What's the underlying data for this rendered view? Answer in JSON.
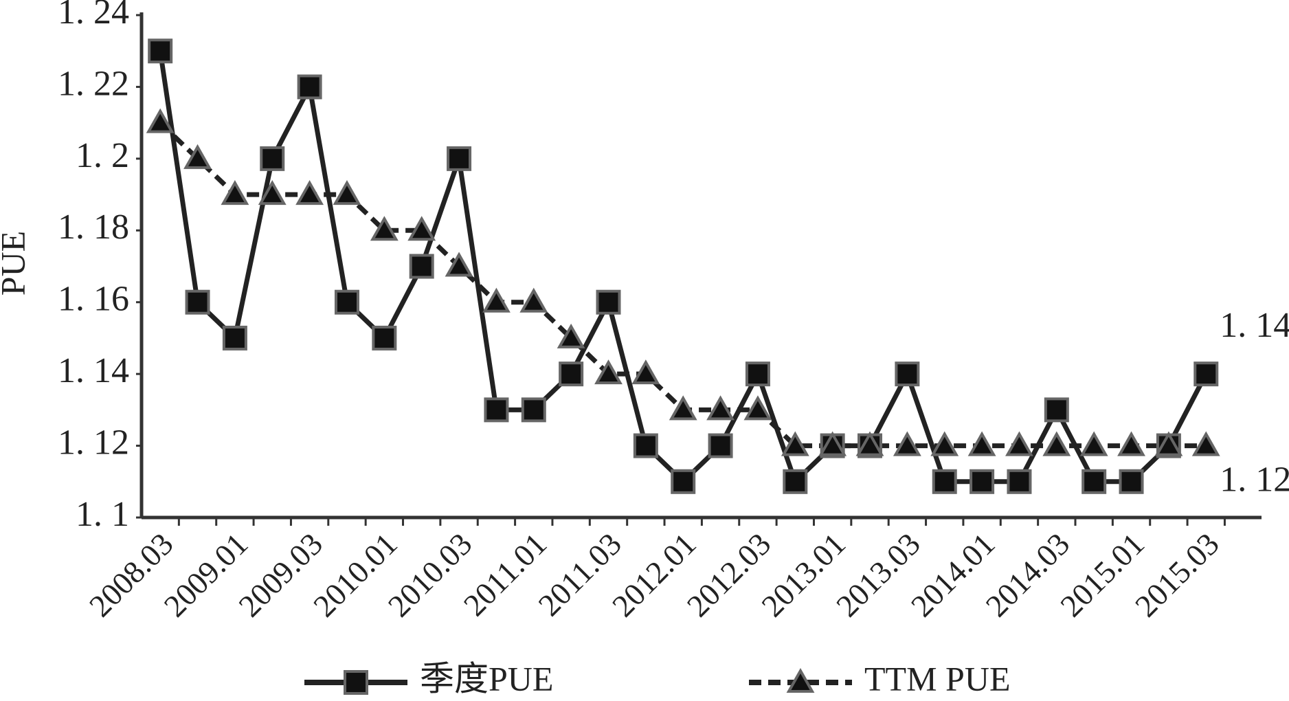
{
  "chart_data": {
    "type": "line",
    "ylabel": "PUE",
    "categories": [
      "2008.03",
      null,
      "2009.01",
      null,
      "2009.03",
      null,
      "2010.01",
      null,
      "2010.03",
      null,
      "2011.01",
      null,
      "2011.03",
      null,
      "2012.01",
      null,
      "2012.03",
      null,
      "2013.01",
      null,
      "2013.03",
      null,
      "2014.01",
      null,
      "2014.03",
      null,
      "2015.01",
      null,
      "2015.03"
    ],
    "series": [
      {
        "name": "季度PUE",
        "color": "#222222",
        "marker": "square",
        "dashed": false,
        "values": [
          1.23,
          1.16,
          1.15,
          1.2,
          1.22,
          1.16,
          1.15,
          1.17,
          1.2,
          1.13,
          1.13,
          1.14,
          1.16,
          1.12,
          1.11,
          1.12,
          1.14,
          1.11,
          1.12,
          1.12,
          1.14,
          1.11,
          1.11,
          1.11,
          1.13,
          1.11,
          1.11,
          1.12,
          1.14
        ]
      },
      {
        "name": "TTM PUE",
        "color": "#222222",
        "marker": "triangle",
        "dashed": true,
        "values": [
          1.21,
          1.2,
          1.19,
          1.19,
          1.19,
          1.19,
          1.18,
          1.18,
          1.17,
          1.16,
          1.16,
          1.15,
          1.14,
          1.14,
          1.13,
          1.13,
          1.13,
          1.12,
          1.12,
          1.12,
          1.12,
          1.12,
          1.12,
          1.12,
          1.12,
          1.12,
          1.12,
          1.12,
          1.12
        ]
      }
    ],
    "annotations": [
      "1. 14",
      "1. 12"
    ],
    "ylim": [
      1.1,
      1.24
    ],
    "yticks": [
      {
        "value": 1.1,
        "label": "1. 1"
      },
      {
        "value": 1.12,
        "label": "1. 12"
      },
      {
        "value": 1.14,
        "label": "1. 14"
      },
      {
        "value": 1.16,
        "label": "1. 16"
      },
      {
        "value": 1.18,
        "label": "1. 18"
      },
      {
        "value": 1.2,
        "label": "1. 2"
      },
      {
        "value": 1.22,
        "label": "1. 22"
      },
      {
        "value": 1.24,
        "label": "1. 24"
      }
    ],
    "grid": false
  }
}
